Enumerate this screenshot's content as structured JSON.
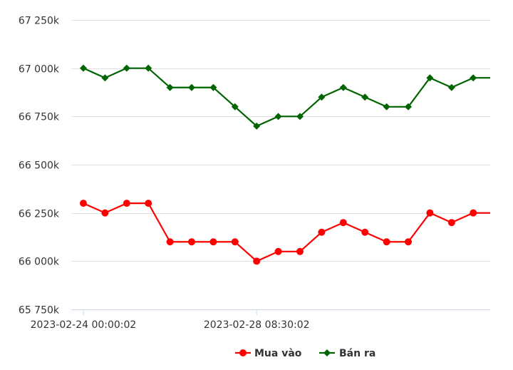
{
  "chart_data": {
    "type": "line",
    "x_tick_labels": [
      "2023-02-24 00:00:02",
      "2023-02-28 08:30:02"
    ],
    "ylim": [
      65750,
      67250
    ],
    "y_ticks": [
      65750,
      66000,
      66250,
      66500,
      66750,
      67000,
      67250
    ],
    "y_tick_labels": [
      "65 750k",
      "66 000k",
      "66 250k",
      "66 500k",
      "66 750k",
      "67 000k",
      "67 250k"
    ],
    "grid": true,
    "legend_position": "bottom-center",
    "series": [
      {
        "name": "Mua vào",
        "color": "#ff0000",
        "marker": "circle",
        "values": [
          66300,
          66250,
          66300,
          66300,
          66100,
          66100,
          66100,
          66100,
          66000,
          66050,
          66050,
          66150,
          66200,
          66150,
          66100,
          66100,
          66250,
          66200,
          66250,
          66250
        ]
      },
      {
        "name": "Bán ra",
        "color": "#006400",
        "marker": "diamond",
        "values": [
          67000,
          66950,
          67000,
          67000,
          66900,
          66900,
          66900,
          66800,
          66700,
          66750,
          66750,
          66850,
          66900,
          66850,
          66800,
          66800,
          66950,
          66900,
          66950,
          66950
        ]
      }
    ]
  }
}
